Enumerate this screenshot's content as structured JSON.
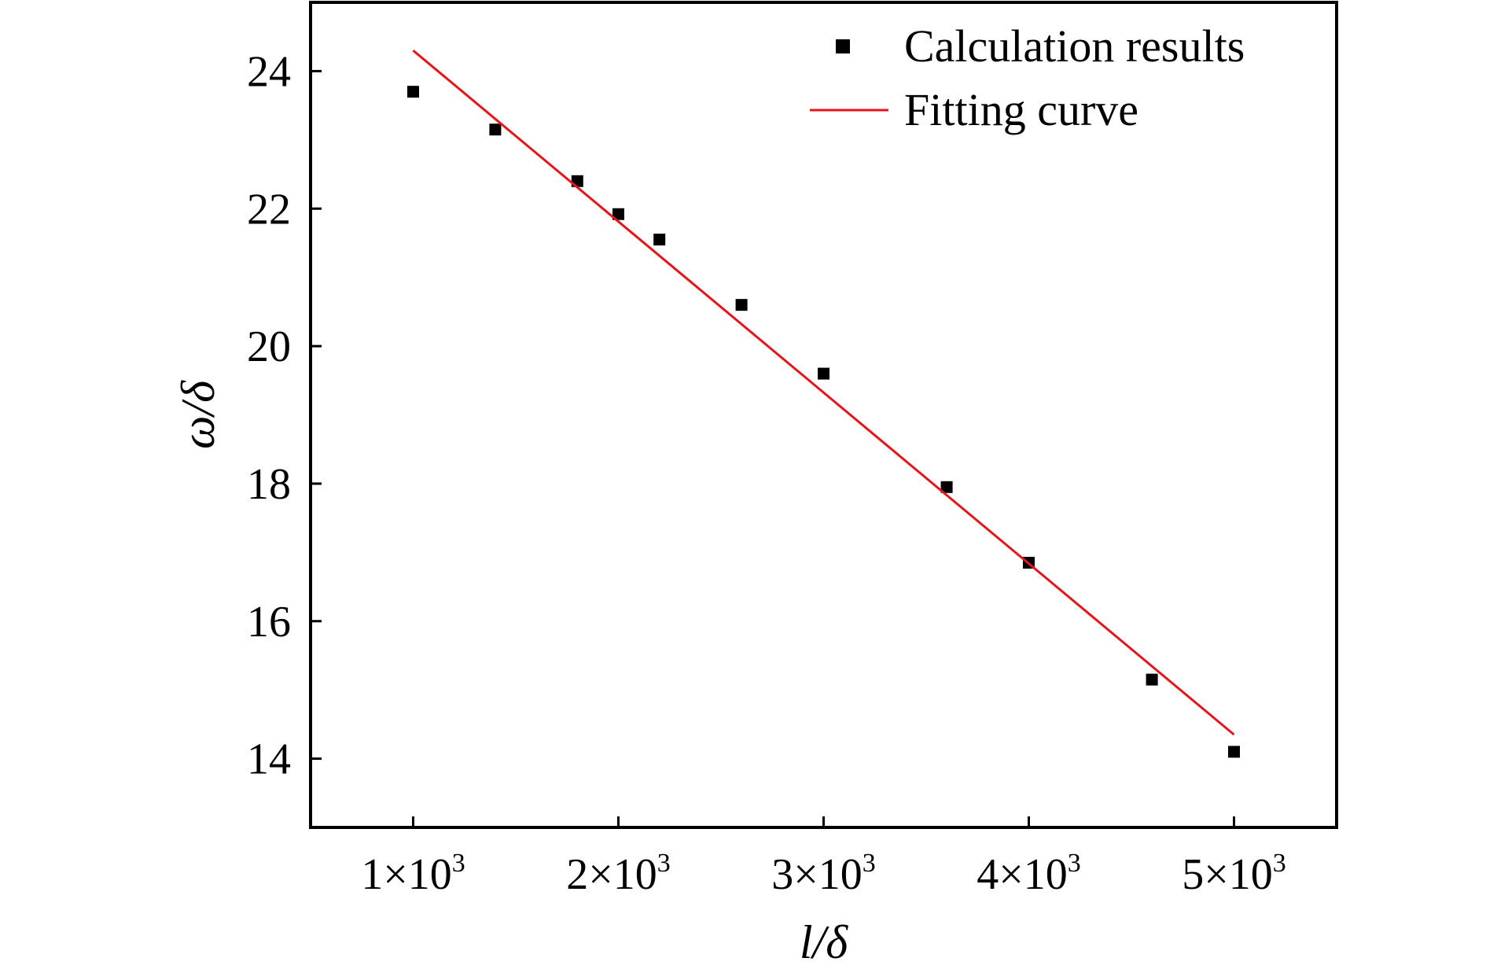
{
  "chart_data": {
    "type": "scatter",
    "title": "",
    "xlabel": "l/δ",
    "ylabel": "ω/δ",
    "xlim": [
      500,
      5500
    ],
    "ylim": [
      13.0,
      25.0
    ],
    "x_ticks": [
      {
        "value": 1000,
        "mantissa": "1×10",
        "exp": "3"
      },
      {
        "value": 2000,
        "mantissa": "2×10",
        "exp": "3"
      },
      {
        "value": 3000,
        "mantissa": "3×10",
        "exp": "3"
      },
      {
        "value": 4000,
        "mantissa": "4×10",
        "exp": "3"
      },
      {
        "value": 5000,
        "mantissa": "5×10",
        "exp": "3"
      }
    ],
    "y_ticks": [
      {
        "value": 14,
        "label": "14"
      },
      {
        "value": 16,
        "label": "16"
      },
      {
        "value": 18,
        "label": "18"
      },
      {
        "value": 20,
        "label": "20"
      },
      {
        "value": 22,
        "label": "22"
      },
      {
        "value": 24,
        "label": "24"
      }
    ],
    "series": [
      {
        "name": "Calculation results",
        "kind": "scatter",
        "marker": "square",
        "color": "#000000",
        "x": [
          1000,
          1400,
          1800,
          2000,
          2200,
          2600,
          3000,
          3600,
          4000,
          4600,
          5000
        ],
        "y": [
          23.7,
          23.15,
          22.4,
          21.92,
          21.55,
          20.6,
          19.6,
          17.95,
          16.85,
          15.15,
          14.1
        ]
      },
      {
        "name": "Fitting curve",
        "kind": "line",
        "color": "#e8141c",
        "x": [
          1000,
          5000
        ],
        "y": [
          24.3,
          14.35
        ]
      }
    ],
    "legend": {
      "placement": "top-right"
    },
    "grid": false
  }
}
